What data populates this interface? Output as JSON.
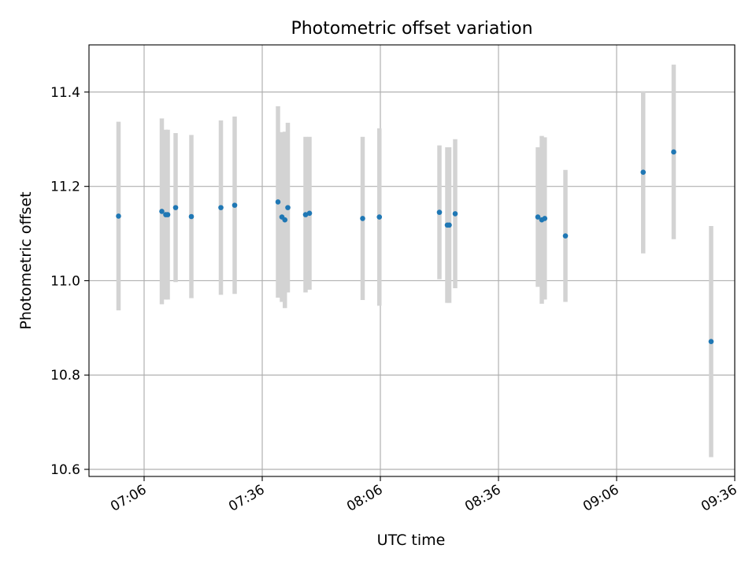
{
  "chart_data": {
    "type": "scatter",
    "title": "Photometric offset variation",
    "xlabel": "UTC time",
    "ylabel": "Photometric offset",
    "xlim": [
      "06:52",
      "09:36"
    ],
    "ylim": [
      10.585,
      11.5
    ],
    "x_ticks": [
      "07:06",
      "07:36",
      "08:06",
      "08:36",
      "09:06",
      "09:36"
    ],
    "y_ticks": [
      "10.6",
      "10.8",
      "11.0",
      "11.2",
      "11.4"
    ],
    "grid": true,
    "point_color": "#1f77b4",
    "errorbar_color": "#d3d3d3",
    "points": [
      {
        "t": "06:59:30",
        "y": 11.137,
        "err": 0.2
      },
      {
        "t": "07:10:30",
        "y": 11.147,
        "err": 0.197
      },
      {
        "t": "07:11:30",
        "y": 11.14,
        "err": 0.18
      },
      {
        "t": "07:12:00",
        "y": 11.14,
        "err": 0.18
      },
      {
        "t": "07:14:00",
        "y": 11.155,
        "err": 0.158
      },
      {
        "t": "07:18:00",
        "y": 11.136,
        "err": 0.173
      },
      {
        "t": "07:25:30",
        "y": 11.155,
        "err": 0.185
      },
      {
        "t": "07:29:00",
        "y": 11.16,
        "err": 0.188
      },
      {
        "t": "07:40:00",
        "y": 11.167,
        "err": 0.203
      },
      {
        "t": "07:41:00",
        "y": 11.135,
        "err": 0.18
      },
      {
        "t": "07:41:45",
        "y": 11.129,
        "err": 0.187
      },
      {
        "t": "07:42:30",
        "y": 11.155,
        "err": 0.18
      },
      {
        "t": "07:47:00",
        "y": 11.14,
        "err": 0.165
      },
      {
        "t": "07:48:00",
        "y": 11.143,
        "err": 0.162
      },
      {
        "t": "08:01:30",
        "y": 11.132,
        "err": 0.173
      },
      {
        "t": "08:05:45",
        "y": 11.135,
        "err": 0.188
      },
      {
        "t": "08:21:00",
        "y": 11.145,
        "err": 0.142
      },
      {
        "t": "08:23:00",
        "y": 11.118,
        "err": 0.165
      },
      {
        "t": "08:23:30",
        "y": 11.118,
        "err": 0.165
      },
      {
        "t": "08:25:00",
        "y": 11.142,
        "err": 0.158
      },
      {
        "t": "08:46:00",
        "y": 11.135,
        "err": 0.148
      },
      {
        "t": "08:47:00",
        "y": 11.129,
        "err": 0.178
      },
      {
        "t": "08:47:45",
        "y": 11.132,
        "err": 0.172
      },
      {
        "t": "08:53:00",
        "y": 11.095,
        "err": 0.14
      },
      {
        "t": "09:12:45",
        "y": 11.23,
        "err": 0.172
      },
      {
        "t": "09:20:30",
        "y": 11.273,
        "err": 0.185
      },
      {
        "t": "09:30:00",
        "y": 10.871,
        "err": 0.245
      }
    ]
  }
}
